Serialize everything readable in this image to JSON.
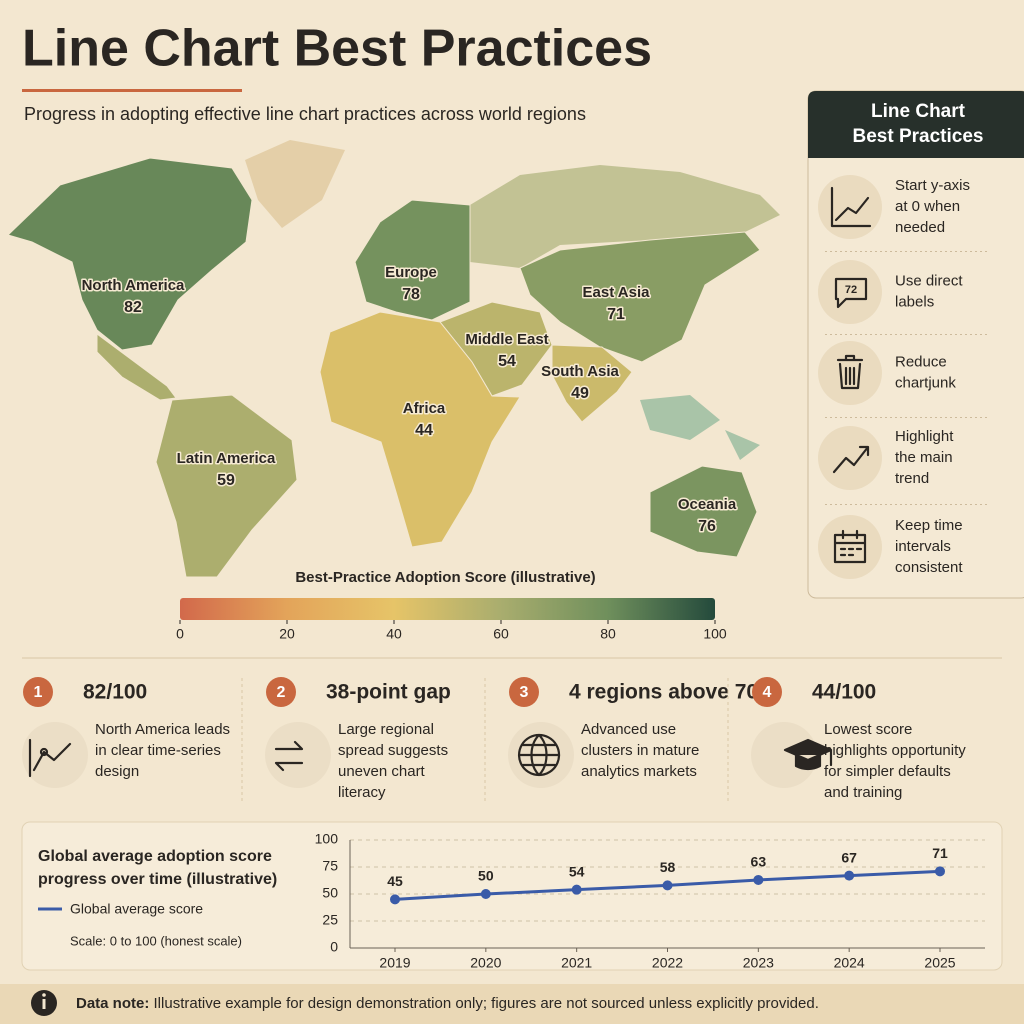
{
  "header": {
    "title": "Line Chart Best Practices",
    "subtitle": "Progress in adopting effective line chart practices across world regions"
  },
  "map": {
    "regions": [
      {
        "name": "North America",
        "score": 82
      },
      {
        "name": "Europe",
        "score": 78
      },
      {
        "name": "East Asia",
        "score": 71
      },
      {
        "name": "Middle East",
        "score": 54
      },
      {
        "name": "South Asia",
        "score": 49
      },
      {
        "name": "Africa",
        "score": 44
      },
      {
        "name": "Latin America",
        "score": 59
      },
      {
        "name": "Oceania",
        "score": 76
      }
    ],
    "legend": {
      "title": "Best-Practice Adoption Score (illustrative)",
      "lim": [
        0,
        100
      ],
      "ticks": [
        0,
        20,
        40,
        60,
        80,
        100
      ],
      "colors": [
        "#d2694b",
        "#e3a45a",
        "#e6c468",
        "#a9ad6e",
        "#6f8f5c",
        "#244a3c"
      ]
    }
  },
  "sidebar": {
    "title": [
      "Line Chart",
      "Best Practices"
    ],
    "items": [
      [
        "Start y-axis",
        "at 0 when",
        "needed"
      ],
      [
        "Use direct",
        "labels"
      ],
      [
        "Reduce",
        "chartjunk"
      ],
      [
        "Highlight",
        "the main",
        "trend"
      ],
      [
        "Keep time",
        "intervals",
        "consistent"
      ]
    ],
    "icon_label": "72"
  },
  "cards": [
    {
      "number": "1",
      "headline": "82/100",
      "text": [
        "North America leads",
        "in clear time-series",
        "design"
      ]
    },
    {
      "number": "2",
      "headline": "38-point gap",
      "text": [
        "Large regional",
        "spread suggests",
        "uneven chart",
        "literacy"
      ]
    },
    {
      "number": "3",
      "headline": "4 regions above 70",
      "text": [
        "Advanced use",
        "clusters in mature",
        "analytics markets"
      ]
    },
    {
      "number": "4",
      "headline": "44/100",
      "text": [
        "Lowest score",
        "highlights opportunity",
        "for simpler defaults",
        "and training"
      ]
    }
  ],
  "chart_data": {
    "type": "line",
    "title": [
      "Global average adoption score",
      "progress over time (illustrative)"
    ],
    "note": "Scale: 0 to 100 (honest scale)",
    "categories": [
      "2019",
      "2020",
      "2021",
      "2022",
      "2023",
      "2024",
      "2025"
    ],
    "series": [
      {
        "name": "Global average score",
        "color": "#3a5ba8",
        "values": [
          45,
          50,
          54,
          58,
          63,
          67,
          71
        ]
      }
    ],
    "ylim": [
      0,
      100
    ],
    "yticks": [
      0,
      25,
      50,
      75,
      100
    ],
    "grid": true
  },
  "footer": {
    "label": "Data note:",
    "text": "Illustrative example for design demonstration only; figures are not sourced unless explicitly provided."
  }
}
